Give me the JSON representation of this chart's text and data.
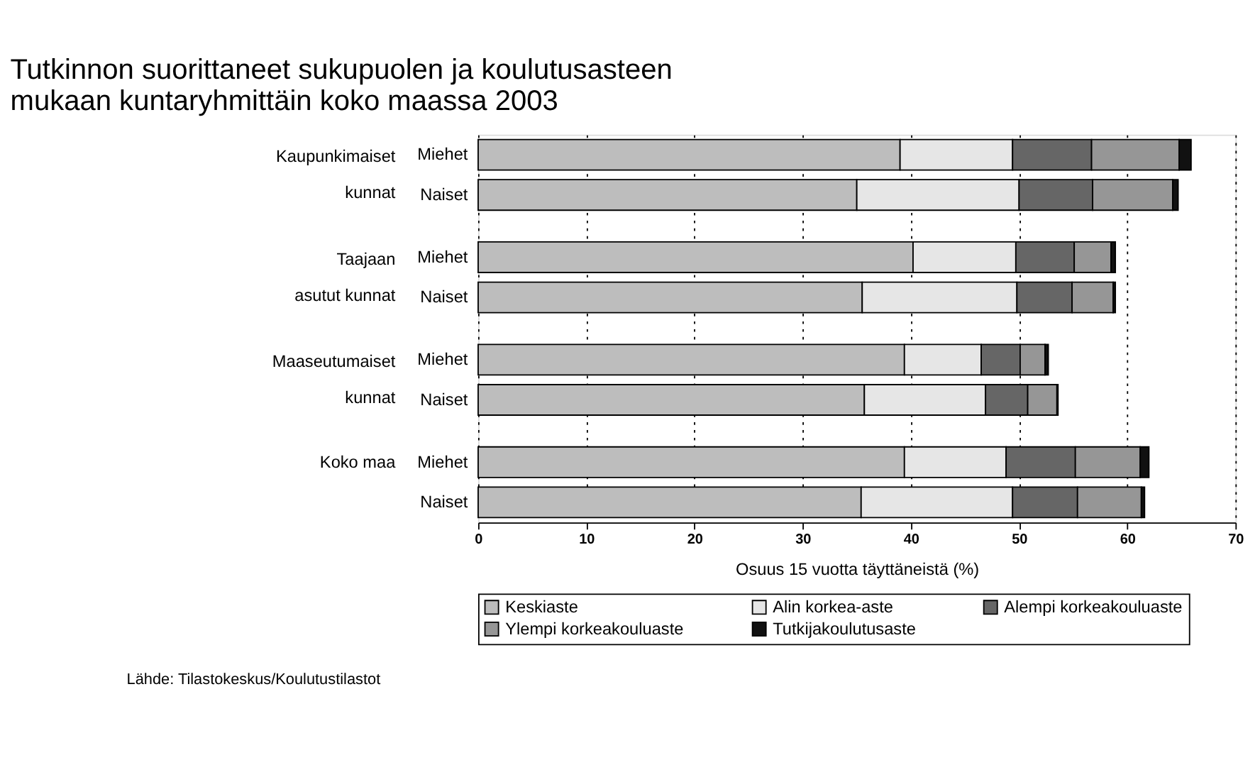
{
  "chart_data": {
    "type": "bar",
    "orientation": "horizontal",
    "stacked": true,
    "title": [
      "Tutkinnon suorittaneet sukupuolen ja koulutusasteen",
      "mukaan kuntaryhmittäin koko maassa 2003"
    ],
    "xlabel": "Osuus 15 vuotta täyttäneistä (%)",
    "categories": [
      "Miehet",
      "Naiset",
      "Miehet",
      "Naiset",
      "Miehet",
      "Naiset",
      "Miehet",
      "Naiset"
    ],
    "series": [
      {
        "name": "Keskiaste",
        "color": "#bdbdbd",
        "values": [
          39.0,
          35.0,
          40.2,
          35.5,
          39.4,
          35.7,
          39.4,
          35.4
        ]
      },
      {
        "name": "Alin korkea-aste",
        "color": "#e6e6e6",
        "values": [
          10.4,
          15.0,
          9.5,
          14.3,
          7.1,
          11.2,
          9.4,
          14.0
        ]
      },
      {
        "name": "Alempi korkeakouluaste",
        "color": "#666666",
        "values": [
          7.3,
          6.8,
          5.4,
          5.1,
          3.6,
          3.9,
          6.4,
          6.0
        ]
      },
      {
        "name": "Ylempi korkeakouluaste",
        "color": "#969696",
        "values": [
          8.1,
          7.4,
          3.4,
          3.8,
          2.3,
          2.7,
          6.0,
          5.9
        ]
      },
      {
        "name": "Tutkijakoulutusaste",
        "color": "#111111",
        "values": [
          1.1,
          0.5,
          0.4,
          0.2,
          0.3,
          0.1,
          0.8,
          0.3
        ]
      }
    ],
    "xlim": [
      0,
      70
    ],
    "xticks": [
      0,
      10,
      20,
      30,
      40,
      50,
      60,
      70
    ],
    "grid": "x",
    "legend": "bottom",
    "annotations": [
      "Kaupunkimaiset kunnat",
      "Taajaan asutut kunnat",
      "Maaseutumaiset kunnat",
      "Koko maa",
      "Lähde: Tilastokeskus/Koulutustilastot"
    ]
  }
}
